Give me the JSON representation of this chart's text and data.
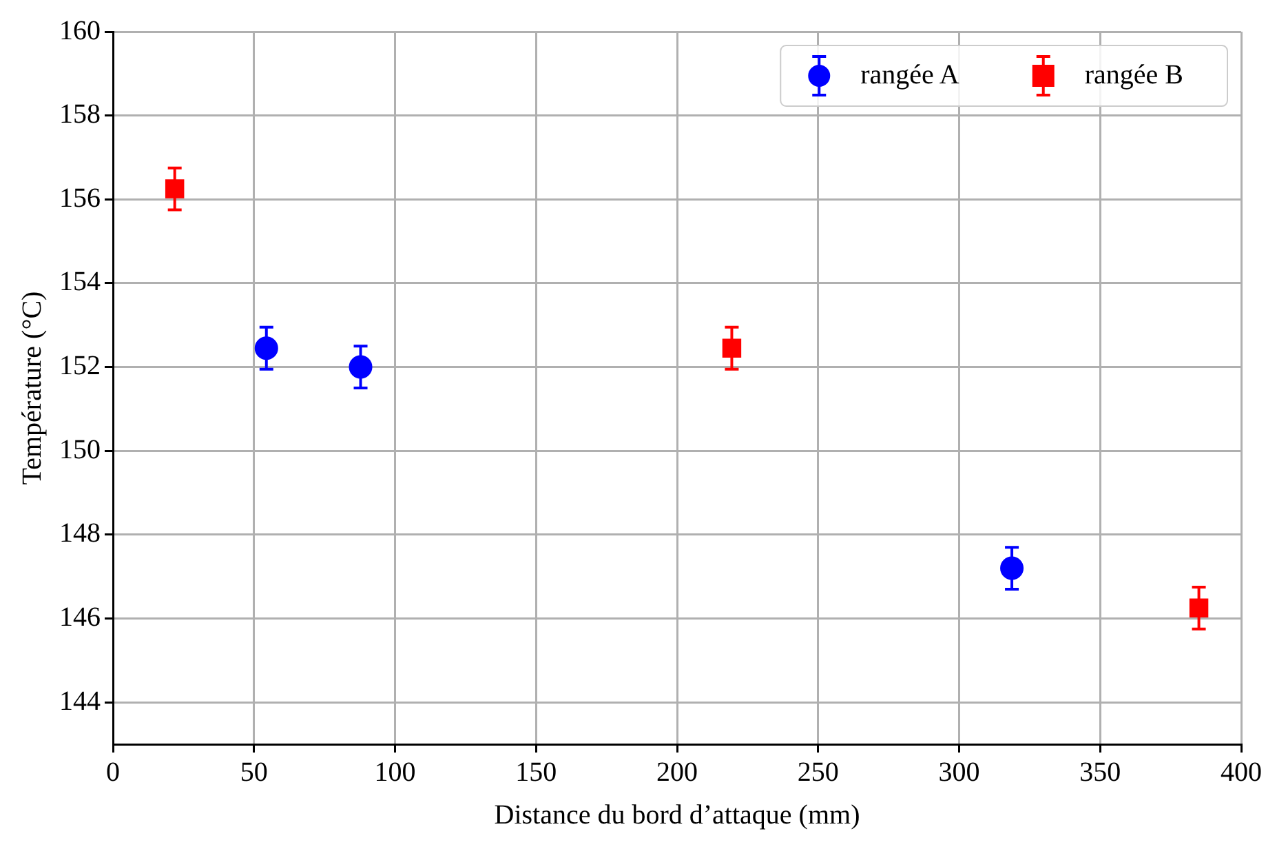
{
  "chart_data": {
    "type": "scatter",
    "xlabel": "Distance du bord d’attaque (mm)",
    "ylabel": "Température (°C)",
    "xlim": [
      0,
      400
    ],
    "xticks": [
      0,
      50,
      100,
      150,
      200,
      250,
      300,
      350,
      400
    ],
    "ylim": [
      143,
      160
    ],
    "yticks": [
      144,
      146,
      148,
      150,
      152,
      154,
      156,
      158,
      160
    ],
    "grid": true,
    "legend": "top right",
    "series": [
      {
        "name": "rangée A",
        "color": "#0000ff",
        "marker": "circle",
        "x": [
          54.4,
          87.8,
          318.7
        ],
        "values": [
          152.45,
          152.0,
          147.2
        ],
        "errors": [
          0.5,
          0.5,
          0.5
        ]
      },
      {
        "name": "rangée B",
        "color": "#ff0000",
        "marker": "square",
        "x": [
          21.9,
          219.4,
          385
        ],
        "values": [
          156.25,
          152.45,
          146.25
        ],
        "errors": [
          0.5,
          0.5,
          0.5
        ]
      }
    ]
  }
}
